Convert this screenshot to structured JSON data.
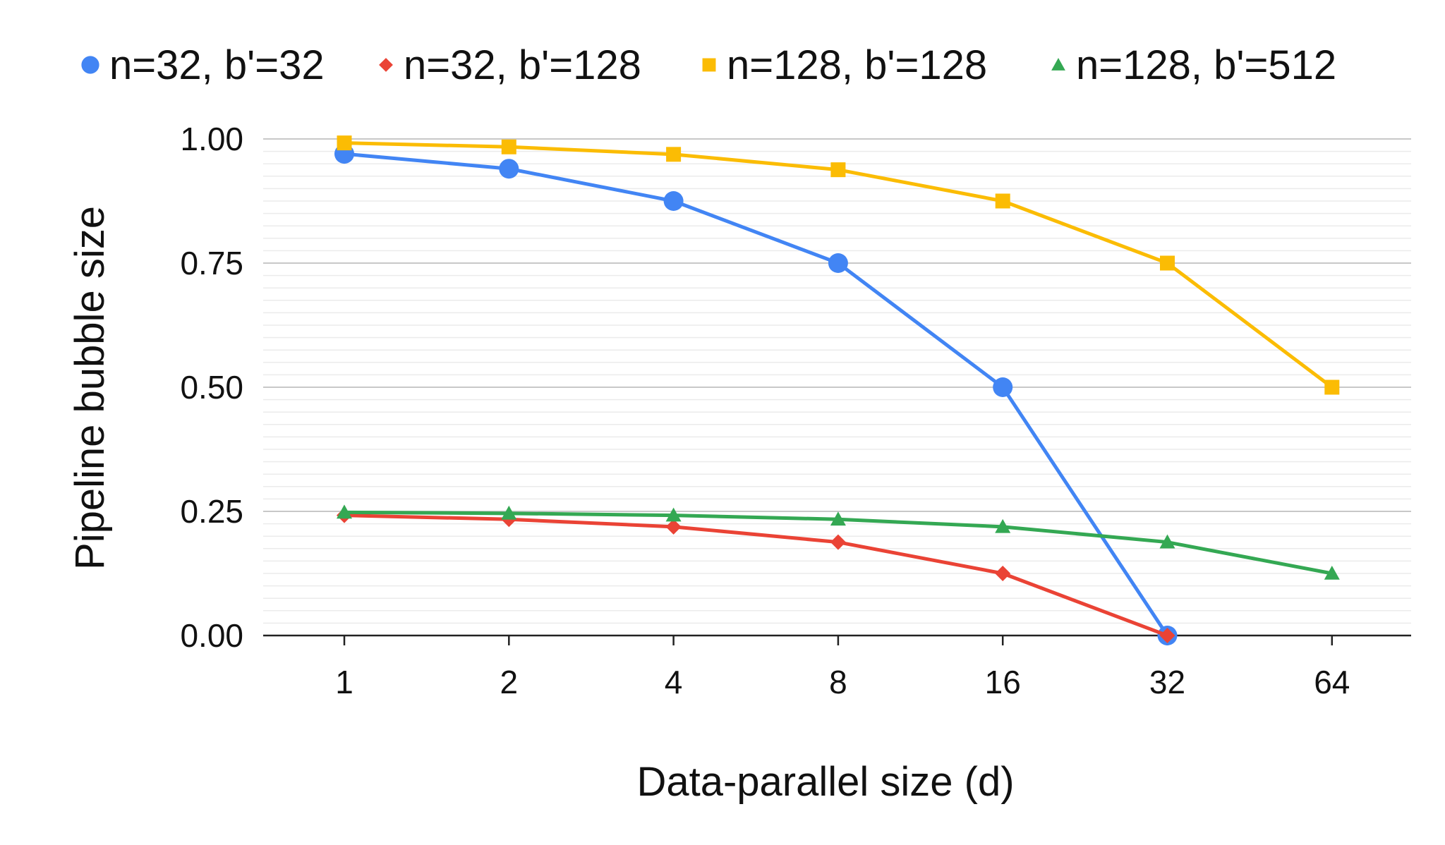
{
  "chart_data": {
    "type": "line",
    "title": "",
    "xlabel": "Data-parallel size (d)",
    "ylabel": "Pipeline bubble size",
    "categories": [
      "1",
      "2",
      "4",
      "8",
      "16",
      "32",
      "64"
    ],
    "ylim": [
      0,
      1
    ],
    "yticks": [
      "0.00",
      "0.25",
      "0.50",
      "0.75",
      "1.00"
    ],
    "grid": "horizontal major and minor",
    "legend_position": "top",
    "series": [
      {
        "name": "n=32, b'=32",
        "color": "#4285F4",
        "marker": "circle",
        "values": [
          0.97,
          0.94,
          0.875,
          0.75,
          0.5,
          0.0,
          null
        ]
      },
      {
        "name": "n=32, b'=128",
        "color": "#EA4335",
        "marker": "diamond",
        "values": [
          0.242,
          0.234,
          0.219,
          0.188,
          0.125,
          0.0,
          null
        ]
      },
      {
        "name": "n=128, b'=128",
        "color": "#FBBC04",
        "marker": "square",
        "values": [
          0.992,
          0.984,
          0.969,
          0.938,
          0.875,
          0.75,
          0.5
        ]
      },
      {
        "name": "n=128, b'=512",
        "color": "#34A853",
        "marker": "triangle",
        "values": [
          0.248,
          0.246,
          0.242,
          0.234,
          0.219,
          0.188,
          0.125
        ]
      }
    ]
  }
}
